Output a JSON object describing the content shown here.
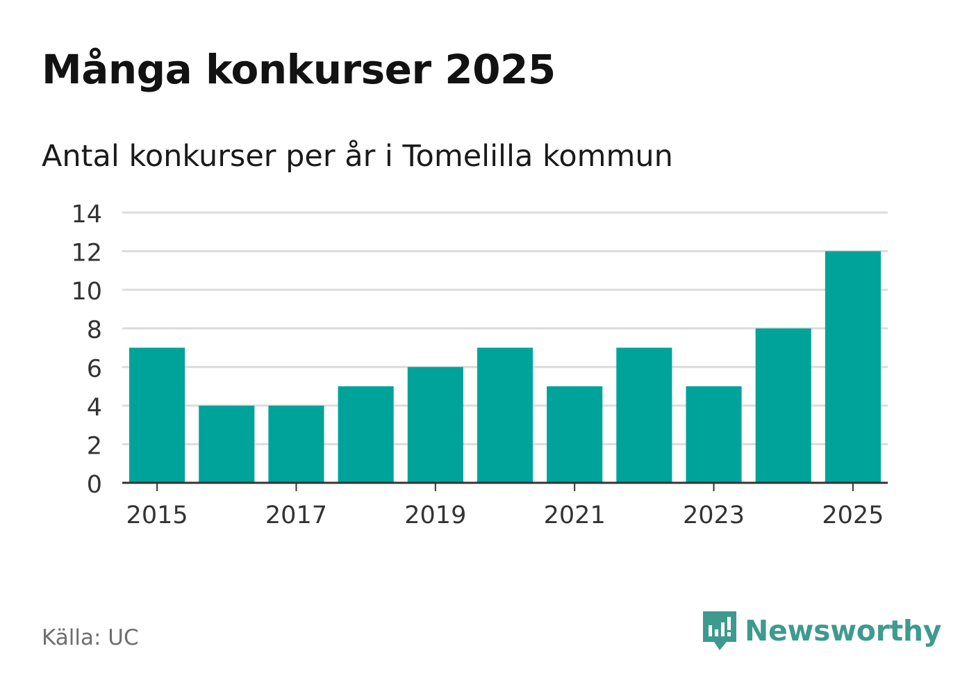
{
  "title": "Många konkurser 2025",
  "subtitle": "Antal konkurser per år i Tomelilla kommun",
  "source": "Källa: UC",
  "brand": {
    "name": "Newsworthy",
    "icon": "newsworthy-logo-icon",
    "color": "#3e9a8e"
  },
  "colors": {
    "bar": "#00a39a",
    "grid": "#dcdcdc",
    "axis": "#333333",
    "text": "#333333"
  },
  "chart_data": {
    "type": "bar",
    "title": "Antal konkurser per år i Tomelilla kommun",
    "xlabel": "",
    "ylabel": "",
    "categories": [
      "2015",
      "2016",
      "2017",
      "2018",
      "2019",
      "2020",
      "2021",
      "2022",
      "2023",
      "2024",
      "2025"
    ],
    "values": [
      7,
      4,
      4,
      5,
      6,
      7,
      5,
      7,
      5,
      8,
      12
    ],
    "x_tick_labels": [
      "2015",
      "2017",
      "2019",
      "2021",
      "2023",
      "2025"
    ],
    "y_ticks": [
      0,
      2,
      4,
      6,
      8,
      10,
      12,
      14
    ],
    "ylim": [
      0,
      14
    ],
    "grid": true
  }
}
